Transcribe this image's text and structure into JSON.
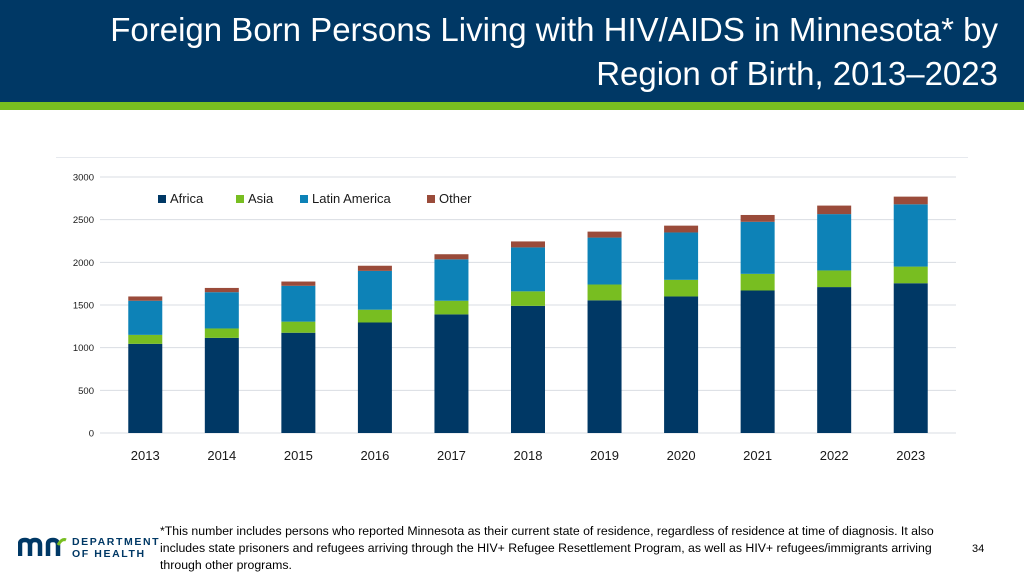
{
  "header": {
    "title_line1": "Foreign Born Persons Living with HIV/AIDS in Minnesota* by",
    "title_line2": "Region of Birth, 2013–2023"
  },
  "colors": {
    "header_bg": "#003865",
    "accent_stripe": "#78be21"
  },
  "chart_data": {
    "type": "bar",
    "stacked": true,
    "categories": [
      "2013",
      "2014",
      "2015",
      "2016",
      "2017",
      "2018",
      "2019",
      "2020",
      "2021",
      "2022",
      "2023"
    ],
    "series": [
      {
        "name": "Africa",
        "color": "#003865",
        "values": [
          1045,
          1115,
          1175,
          1295,
          1390,
          1490,
          1555,
          1600,
          1670,
          1710,
          1755
        ]
      },
      {
        "name": "Asia",
        "color": "#78be21",
        "values": [
          105,
          110,
          130,
          150,
          160,
          170,
          185,
          195,
          195,
          195,
          195
        ]
      },
      {
        "name": "Latin America",
        "color": "#0d82b7",
        "values": [
          400,
          425,
          420,
          455,
          485,
          515,
          550,
          555,
          610,
          660,
          730
        ]
      },
      {
        "name": "Other",
        "color": "#9a4b3a",
        "values": [
          50,
          50,
          50,
          60,
          60,
          70,
          70,
          80,
          80,
          100,
          90
        ]
      }
    ],
    "ylim": [
      0,
      3000
    ],
    "yticks": [
      0,
      500,
      1000,
      1500,
      2000,
      2500,
      3000
    ],
    "legend_position": "top-left",
    "title": "",
    "xlabel": "",
    "ylabel": ""
  },
  "logo": {
    "line1": "DEPARTMENT",
    "line2": "OF HEALTH"
  },
  "footnote": "*This number includes persons who reported Minnesota as their current state of residence, regardless of residence at time of diagnosis. It also includes state prisoners and refugees arriving through the HIV+ Refugee Resettlement Program, as well as HIV+ refugees/immigrants arriving through other programs.",
  "page_number": "34"
}
